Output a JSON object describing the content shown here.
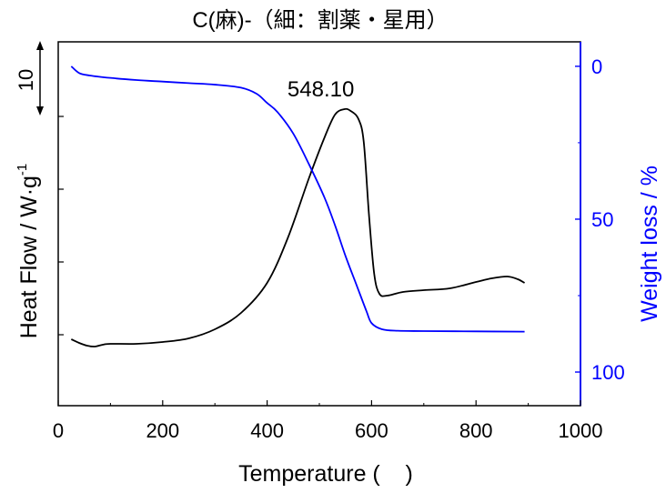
{
  "chart_data": {
    "type": "line",
    "title": "C(麻)-（細：割薬・星用）",
    "xlabel": "Temperature (    )",
    "ylabel_left": "Heat Flow / W·g",
    "ylabel_left_sup": "-1",
    "ylabel_right": "Weight loss / %",
    "xlim": [
      0,
      1000
    ],
    "x_ticks": [
      "0",
      "200",
      "400",
      "600",
      "800",
      "1000"
    ],
    "y_right_lim": [
      -8,
      111
    ],
    "y_right_ticks": [
      "0",
      "50",
      "100"
    ],
    "scale_bar_label": "10",
    "annotation": "548.10",
    "colors": {
      "heat_flow": "#000000",
      "weight_loss": "#0000ff",
      "axis": "#000000",
      "right_axis": "#0000ff"
    },
    "series": [
      {
        "name": "Heat Flow",
        "axis": "left",
        "x": [
          25,
          40,
          55,
          70,
          85,
          100,
          150,
          200,
          250,
          300,
          350,
          400,
          440,
          480,
          510,
          530,
          548.1,
          560,
          575,
          585,
          595,
          605,
          615,
          630,
          660,
          700,
          750,
          800,
          830,
          860,
          880,
          893
        ],
        "y": [
          7.3,
          6.9,
          6.6,
          6.5,
          6.7,
          6.8,
          6.8,
          7.0,
          7.4,
          8.4,
          10.2,
          13.5,
          18.5,
          25.0,
          29.5,
          32.0,
          32.6,
          32.4,
          31.5,
          29.0,
          21.0,
          14.5,
          12.3,
          12.1,
          12.5,
          12.7,
          12.9,
          13.6,
          14.0,
          14.2,
          13.9,
          13.5
        ]
      },
      {
        "name": "Weight loss",
        "axis": "right",
        "x": [
          25,
          40,
          60,
          100,
          150,
          200,
          250,
          300,
          350,
          380,
          400,
          420,
          450,
          480,
          510,
          530,
          550,
          570,
          590,
          600,
          620,
          650,
          700,
          800,
          893
        ],
        "y": [
          0,
          2.2,
          3.0,
          3.8,
          4.5,
          5.0,
          5.5,
          6.0,
          7.0,
          9.0,
          12.0,
          15.0,
          22.0,
          32.0,
          43.0,
          52.0,
          62.0,
          71.0,
          80.0,
          84.0,
          86.0,
          86.5,
          86.6,
          86.7,
          86.8
        ]
      }
    ]
  }
}
